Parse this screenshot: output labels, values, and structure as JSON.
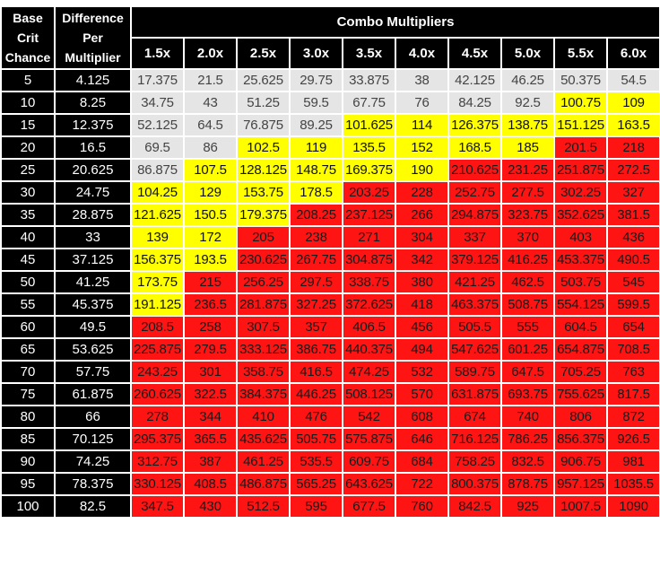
{
  "header": {
    "base_crit": [
      "Base",
      "Crit",
      "Chance"
    ],
    "difference": [
      "Difference",
      "Per",
      "Multiplier"
    ],
    "combo_title": "Combo Multipliers",
    "multipliers": [
      "1.5x",
      "2.0x",
      "2.5x",
      "3.0x",
      "3.5x",
      "4.0x",
      "4.5x",
      "5.0x",
      "5.5x",
      "6.0x"
    ]
  },
  "colors": {
    "gray": "#e5e5e5",
    "yellow": "#ffff00",
    "red": "#ff1414",
    "header": "#000000"
  },
  "rows": [
    {
      "base": "5",
      "diff": "4.125",
      "values": [
        "17.375",
        "21.5",
        "25.625",
        "29.75",
        "33.875",
        "38",
        "42.125",
        "46.25",
        "50.375",
        "54.5"
      ],
      "colors": [
        "g",
        "g",
        "g",
        "g",
        "g",
        "g",
        "g",
        "g",
        "g",
        "g"
      ]
    },
    {
      "base": "10",
      "diff": "8.25",
      "values": [
        "34.75",
        "43",
        "51.25",
        "59.5",
        "67.75",
        "76",
        "84.25",
        "92.5",
        "100.75",
        "109"
      ],
      "colors": [
        "g",
        "g",
        "g",
        "g",
        "g",
        "g",
        "g",
        "g",
        "y",
        "y"
      ]
    },
    {
      "base": "15",
      "diff": "12.375",
      "values": [
        "52.125",
        "64.5",
        "76.875",
        "89.25",
        "101.625",
        "114",
        "126.375",
        "138.75",
        "151.125",
        "163.5"
      ],
      "colors": [
        "g",
        "g",
        "g",
        "g",
        "y",
        "y",
        "y",
        "y",
        "y",
        "y"
      ]
    },
    {
      "base": "20",
      "diff": "16.5",
      "values": [
        "69.5",
        "86",
        "102.5",
        "119",
        "135.5",
        "152",
        "168.5",
        "185",
        "201.5",
        "218"
      ],
      "colors": [
        "g",
        "g",
        "y",
        "y",
        "y",
        "y",
        "y",
        "y",
        "r",
        "r"
      ]
    },
    {
      "base": "25",
      "diff": "20.625",
      "values": [
        "86.875",
        "107.5",
        "128.125",
        "148.75",
        "169.375",
        "190",
        "210.625",
        "231.25",
        "251.875",
        "272.5"
      ],
      "colors": [
        "g",
        "y",
        "y",
        "y",
        "y",
        "y",
        "r",
        "r",
        "r",
        "r"
      ]
    },
    {
      "base": "30",
      "diff": "24.75",
      "values": [
        "104.25",
        "129",
        "153.75",
        "178.5",
        "203.25",
        "228",
        "252.75",
        "277.5",
        "302.25",
        "327"
      ],
      "colors": [
        "y",
        "y",
        "y",
        "y",
        "r",
        "r",
        "r",
        "r",
        "r",
        "r"
      ]
    },
    {
      "base": "35",
      "diff": "28.875",
      "values": [
        "121.625",
        "150.5",
        "179.375",
        "208.25",
        "237.125",
        "266",
        "294.875",
        "323.75",
        "352.625",
        "381.5"
      ],
      "colors": [
        "y",
        "y",
        "y",
        "r",
        "r",
        "r",
        "r",
        "r",
        "r",
        "r"
      ]
    },
    {
      "base": "40",
      "diff": "33",
      "values": [
        "139",
        "172",
        "205",
        "238",
        "271",
        "304",
        "337",
        "370",
        "403",
        "436"
      ],
      "colors": [
        "y",
        "y",
        "r",
        "r",
        "r",
        "r",
        "r",
        "r",
        "r",
        "r"
      ]
    },
    {
      "base": "45",
      "diff": "37.125",
      "values": [
        "156.375",
        "193.5",
        "230.625",
        "267.75",
        "304.875",
        "342",
        "379.125",
        "416.25",
        "453.375",
        "490.5"
      ],
      "colors": [
        "y",
        "y",
        "r",
        "r",
        "r",
        "r",
        "r",
        "r",
        "r",
        "r"
      ]
    },
    {
      "base": "50",
      "diff": "41.25",
      "values": [
        "173.75",
        "215",
        "256.25",
        "297.5",
        "338.75",
        "380",
        "421.25",
        "462.5",
        "503.75",
        "545"
      ],
      "colors": [
        "y",
        "r",
        "r",
        "r",
        "r",
        "r",
        "r",
        "r",
        "r",
        "r"
      ]
    },
    {
      "base": "55",
      "diff": "45.375",
      "values": [
        "191.125",
        "236.5",
        "281.875",
        "327.25",
        "372.625",
        "418",
        "463.375",
        "508.75",
        "554.125",
        "599.5"
      ],
      "colors": [
        "y",
        "r",
        "r",
        "r",
        "r",
        "r",
        "r",
        "r",
        "r",
        "r"
      ]
    },
    {
      "base": "60",
      "diff": "49.5",
      "values": [
        "208.5",
        "258",
        "307.5",
        "357",
        "406.5",
        "456",
        "505.5",
        "555",
        "604.5",
        "654"
      ],
      "colors": [
        "r",
        "r",
        "r",
        "r",
        "r",
        "r",
        "r",
        "r",
        "r",
        "r"
      ]
    },
    {
      "base": "65",
      "diff": "53.625",
      "values": [
        "225.875",
        "279.5",
        "333.125",
        "386.75",
        "440.375",
        "494",
        "547.625",
        "601.25",
        "654.875",
        "708.5"
      ],
      "colors": [
        "r",
        "r",
        "r",
        "r",
        "r",
        "r",
        "r",
        "r",
        "r",
        "r"
      ]
    },
    {
      "base": "70",
      "diff": "57.75",
      "values": [
        "243.25",
        "301",
        "358.75",
        "416.5",
        "474.25",
        "532",
        "589.75",
        "647.5",
        "705.25",
        "763"
      ],
      "colors": [
        "r",
        "r",
        "r",
        "r",
        "r",
        "r",
        "r",
        "r",
        "r",
        "r"
      ]
    },
    {
      "base": "75",
      "diff": "61.875",
      "values": [
        "260.625",
        "322.5",
        "384.375",
        "446.25",
        "508.125",
        "570",
        "631.875",
        "693.75",
        "755.625",
        "817.5"
      ],
      "colors": [
        "r",
        "r",
        "r",
        "r",
        "r",
        "r",
        "r",
        "r",
        "r",
        "r"
      ]
    },
    {
      "base": "80",
      "diff": "66",
      "values": [
        "278",
        "344",
        "410",
        "476",
        "542",
        "608",
        "674",
        "740",
        "806",
        "872"
      ],
      "colors": [
        "r",
        "r",
        "r",
        "r",
        "r",
        "r",
        "r",
        "r",
        "r",
        "r"
      ]
    },
    {
      "base": "85",
      "diff": "70.125",
      "values": [
        "295.375",
        "365.5",
        "435.625",
        "505.75",
        "575.875",
        "646",
        "716.125",
        "786.25",
        "856.375",
        "926.5"
      ],
      "colors": [
        "r",
        "r",
        "r",
        "r",
        "r",
        "r",
        "r",
        "r",
        "r",
        "r"
      ]
    },
    {
      "base": "90",
      "diff": "74.25",
      "values": [
        "312.75",
        "387",
        "461.25",
        "535.5",
        "609.75",
        "684",
        "758.25",
        "832.5",
        "906.75",
        "981"
      ],
      "colors": [
        "r",
        "r",
        "r",
        "r",
        "r",
        "r",
        "r",
        "r",
        "r",
        "r"
      ]
    },
    {
      "base": "95",
      "diff": "78.375",
      "values": [
        "330.125",
        "408.5",
        "486.875",
        "565.25",
        "643.625",
        "722",
        "800.375",
        "878.75",
        "957.125",
        "1035.5"
      ],
      "colors": [
        "r",
        "r",
        "r",
        "r",
        "r",
        "r",
        "r",
        "r",
        "r",
        "r"
      ]
    },
    {
      "base": "100",
      "diff": "82.5",
      "values": [
        "347.5",
        "430",
        "512.5",
        "595",
        "677.5",
        "760",
        "842.5",
        "925",
        "1007.5",
        "1090"
      ],
      "colors": [
        "r",
        "r",
        "r",
        "r",
        "r",
        "r",
        "r",
        "r",
        "r",
        "r"
      ]
    }
  ]
}
